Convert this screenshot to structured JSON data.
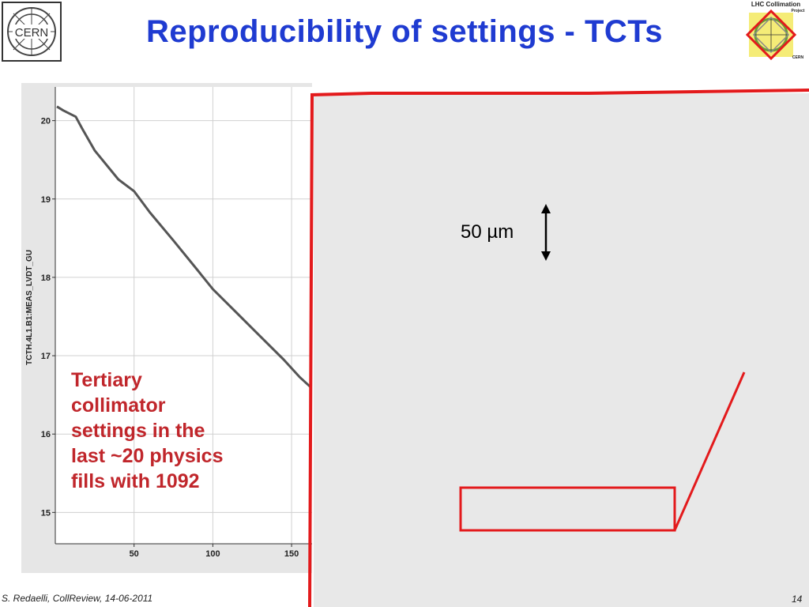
{
  "title": "Reproducibility of settings - TCTs",
  "logos": {
    "cern": "CERN",
    "lhc_line1": "LHC Collimation",
    "lhc_line2": "Project",
    "lhc_line3": "CERN"
  },
  "annotation": [
    "Tertiary",
    "collimator",
    "settings in the",
    "last ~20 physics",
    "fills with 1092"
  ],
  "scale_label": "50 µm",
  "footer": {
    "author": "S. Redaelli, CollReview, 14-06-2011",
    "page": "14"
  },
  "colors": {
    "title": "#1f3bd1",
    "highlight": "#e31a1c",
    "annotation": "#c0262b",
    "trace": "#555555"
  },
  "chart_data": {
    "type": "line",
    "ylabel": "TCTH.4L1.B1:MEAS_LVDT_GU",
    "xlabel": "",
    "x_ticks": [
      50,
      100,
      150
    ],
    "y_ticks": [
      20,
      19,
      18,
      17,
      16,
      15
    ],
    "xlim": [
      0,
      163
    ],
    "ylim": [
      14.6,
      20.43
    ],
    "grid": true,
    "series": [
      {
        "points": [
          [
            1,
            20.18
          ],
          [
            5,
            20.13
          ],
          [
            10,
            20.08
          ],
          [
            13,
            20.05
          ],
          [
            17,
            19.9
          ],
          [
            25,
            19.62
          ],
          [
            40,
            19.25
          ],
          [
            50,
            19.1
          ],
          [
            60,
            18.83
          ],
          [
            75,
            18.47
          ],
          [
            90,
            18.1
          ],
          [
            100,
            17.85
          ],
          [
            115,
            17.55
          ],
          [
            130,
            17.25
          ],
          [
            145,
            16.95
          ],
          [
            155,
            16.73
          ],
          [
            162,
            16.6
          ]
        ]
      }
    ]
  }
}
